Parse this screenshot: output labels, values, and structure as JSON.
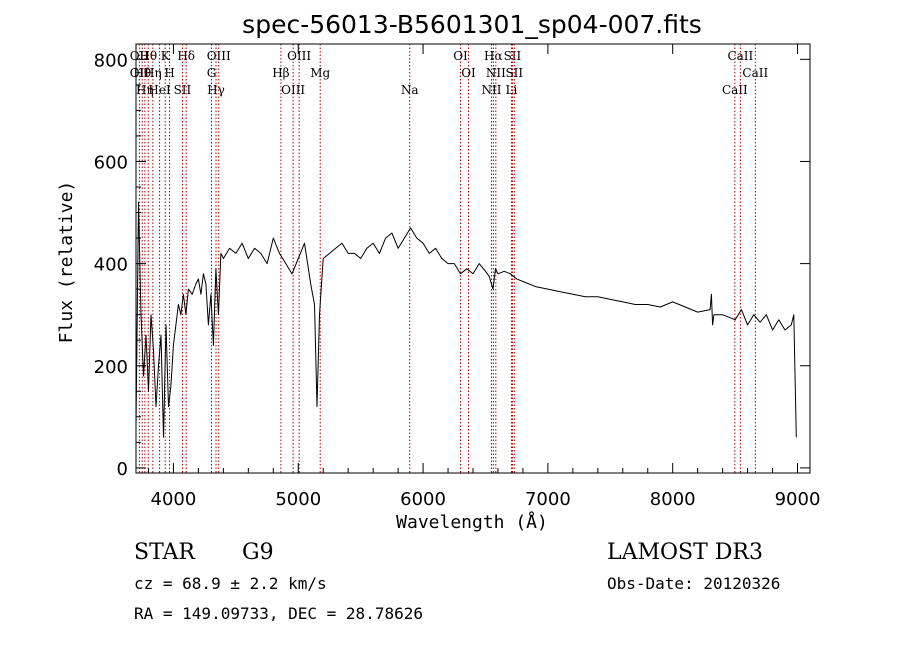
{
  "chart_data": {
    "type": "line",
    "title": "spec-56013-B5601301_sp04-007.fits",
    "xlabel": "Wavelength (Å)",
    "ylabel": "Flux (relative)",
    "xlim": [
      3700,
      9100
    ],
    "ylim": [
      -10,
      830
    ],
    "xticks": [
      4000,
      5000,
      6000,
      7000,
      8000,
      9000
    ],
    "yticks": [
      0,
      200,
      400,
      600,
      800
    ],
    "series": [
      {
        "name": "flux",
        "x": [
          3700,
          3720,
          3740,
          3760,
          3780,
          3800,
          3820,
          3840,
          3860,
          3880,
          3900,
          3920,
          3940,
          3960,
          3980,
          4000,
          4020,
          4040,
          4060,
          4080,
          4100,
          4120,
          4150,
          4180,
          4200,
          4220,
          4240,
          4260,
          4280,
          4300,
          4320,
          4340,
          4360,
          4380,
          4400,
          4450,
          4500,
          4550,
          4600,
          4650,
          4700,
          4750,
          4800,
          4850,
          4900,
          4950,
          5000,
          5050,
          5100,
          5130,
          5150,
          5170,
          5200,
          5250,
          5300,
          5350,
          5400,
          5450,
          5500,
          5550,
          5600,
          5650,
          5700,
          5750,
          5800,
          5850,
          5900,
          5950,
          6000,
          6050,
          6100,
          6150,
          6200,
          6250,
          6300,
          6350,
          6400,
          6450,
          6500,
          6530,
          6560,
          6580,
          6600,
          6650,
          6700,
          6750,
          6800,
          6850,
          6900,
          7000,
          7100,
          7200,
          7300,
          7400,
          7500,
          7600,
          7700,
          7800,
          7900,
          8000,
          8100,
          8200,
          8300,
          8310,
          8320,
          8330,
          8350,
          8400,
          8450,
          8500,
          8550,
          8600,
          8650,
          8700,
          8750,
          8800,
          8850,
          8900,
          8950,
          8970,
          8990
        ],
        "values": [
          80,
          520,
          300,
          180,
          260,
          150,
          300,
          230,
          120,
          200,
          260,
          60,
          280,
          120,
          160,
          240,
          280,
          320,
          300,
          340,
          300,
          350,
          340,
          360,
          370,
          340,
          380,
          360,
          280,
          340,
          240,
          390,
          300,
          420,
          410,
          430,
          420,
          440,
          410,
          430,
          420,
          400,
          450,
          420,
          400,
          380,
          410,
          440,
          360,
          320,
          120,
          300,
          410,
          420,
          430,
          440,
          420,
          420,
          410,
          430,
          440,
          420,
          450,
          460,
          430,
          450,
          470,
          450,
          440,
          420,
          430,
          410,
          400,
          400,
          380,
          390,
          380,
          400,
          385,
          375,
          350,
          390,
          380,
          385,
          380,
          370,
          365,
          360,
          355,
          350,
          345,
          340,
          335,
          335,
          330,
          325,
          320,
          320,
          315,
          325,
          315,
          305,
          310,
          340,
          280,
          300,
          300,
          300,
          295,
          290,
          310,
          280,
          300,
          285,
          300,
          270,
          290,
          270,
          280,
          300,
          60
        ]
      }
    ],
    "lines": [
      {
        "x": 3727,
        "labels": [
          "OII",
          "OII"
        ]
      },
      {
        "x": 3750,
        "labels": [
          "Hθ"
        ]
      },
      {
        "x": 3771,
        "labels": [
          "Hη"
        ]
      },
      {
        "x": 3798,
        "labels": [
          "Hθ"
        ]
      },
      {
        "x": 3835,
        "labels": [
          "Hη"
        ]
      },
      {
        "x": 3889,
        "labels": [
          "HeI"
        ]
      },
      {
        "x": 3934,
        "labels": [
          "K"
        ]
      },
      {
        "x": 3969,
        "labels": [
          "H"
        ]
      },
      {
        "x": 4072,
        "labels": [
          "SII"
        ]
      },
      {
        "x": 4102,
        "labels": [
          "Hδ"
        ]
      },
      {
        "x": 4305,
        "labels": [
          "G"
        ]
      },
      {
        "x": 4341,
        "labels": [
          "Hγ"
        ]
      },
      {
        "x": 4363,
        "labels": [
          "OIII"
        ]
      },
      {
        "x": 4861,
        "labels": [
          "Hβ"
        ]
      },
      {
        "x": 4959,
        "labels": [
          "OIII"
        ]
      },
      {
        "x": 5007,
        "labels": [
          "OIII"
        ]
      },
      {
        "x": 5176,
        "labels": [
          "Mg"
        ]
      },
      {
        "x": 5893,
        "labels": [
          "Na"
        ]
      },
      {
        "x": 6300,
        "labels": [
          "OI"
        ]
      },
      {
        "x": 6364,
        "labels": [
          "OI"
        ]
      },
      {
        "x": 6548,
        "labels": [
          "NII"
        ]
      },
      {
        "x": 6563,
        "labels": [
          "Hα"
        ]
      },
      {
        "x": 6583,
        "labels": [
          "NII"
        ]
      },
      {
        "x": 6708,
        "labels": [
          "Li"
        ]
      },
      {
        "x": 6716,
        "labels": [
          "SII"
        ]
      },
      {
        "x": 6731,
        "labels": [
          "SII"
        ]
      },
      {
        "x": 8498,
        "labels": [
          "CaII"
        ]
      },
      {
        "x": 8542,
        "labels": [
          "CaII"
        ]
      },
      {
        "x": 8662,
        "labels": [
          "CaII"
        ]
      }
    ]
  },
  "info": {
    "class": "STAR",
    "subclass": "G9",
    "survey": "LAMOST DR3",
    "cz": "cz = 68.9 ± 2.2 km/s",
    "obs_date": "Obs-Date: 20120326",
    "coords": "RA = 149.09733, DEC =  28.78626"
  },
  "colors": {
    "line_marker": "#aa0000",
    "spectrum": "#000000"
  }
}
